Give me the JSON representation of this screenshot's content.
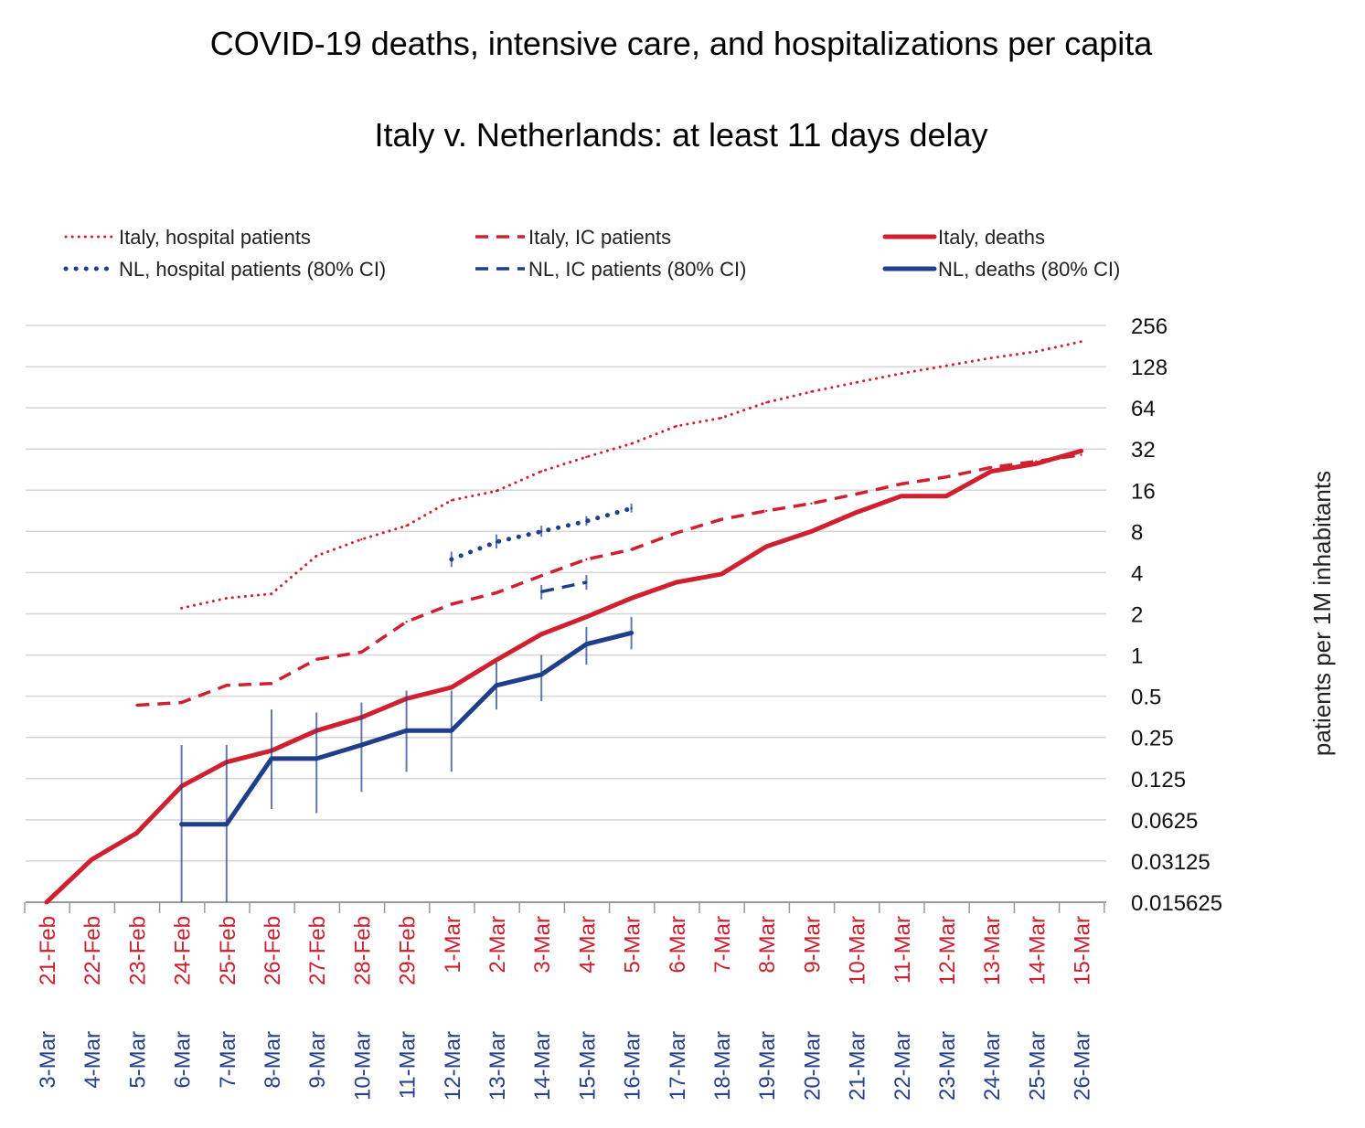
{
  "chart_data": {
    "type": "line",
    "title": "COVID-19 deaths, intensive care, and hospitalizations per capita",
    "subtitle": "Italy v. Netherlands: at least 11 days delay",
    "ylabel": "patients per 1M inhabitants",
    "y_scale": "log2",
    "ylim": [
      0.015625,
      256
    ],
    "y_ticks": [
      "256",
      "128",
      "64",
      "32",
      "16",
      "8",
      "4",
      "2",
      "1",
      "0.5",
      "0.25",
      "0.125",
      "0.0625",
      "0.03125",
      "0.015625"
    ],
    "categories_italy": [
      "21-Feb",
      "22-Feb",
      "23-Feb",
      "24-Feb",
      "25-Feb",
      "26-Feb",
      "27-Feb",
      "28-Feb",
      "29-Feb",
      "1-Mar",
      "2-Mar",
      "3-Mar",
      "4-Mar",
      "5-Mar",
      "6-Mar",
      "7-Mar",
      "8-Mar",
      "9-Mar",
      "10-Mar",
      "11-Mar",
      "12-Mar",
      "13-Mar",
      "14-Mar",
      "15-Mar"
    ],
    "categories_nl": [
      "3-Mar",
      "4-Mar",
      "5-Mar",
      "6-Mar",
      "7-Mar",
      "8-Mar",
      "9-Mar",
      "10-Mar",
      "11-Mar",
      "12-Mar",
      "13-Mar",
      "14-Mar",
      "15-Mar",
      "16-Mar",
      "17-Mar",
      "18-Mar",
      "19-Mar",
      "20-Mar",
      "21-Mar",
      "22-Mar",
      "23-Mar",
      "24-Mar",
      "25-Mar",
      "26-Mar"
    ],
    "grid": true,
    "legend_position": "top",
    "series": [
      {
        "name": "Italy, hospital patients",
        "color": "#d02030",
        "style": "dotted",
        "values": [
          null,
          null,
          null,
          2.2,
          2.6,
          2.8,
          5.3,
          7.0,
          8.8,
          13.5,
          15.8,
          22.0,
          28.0,
          35.0,
          47.0,
          54.0,
          70.0,
          84.0,
          98.0,
          114.0,
          130.0,
          148.0,
          165.0,
          195.0
        ]
      },
      {
        "name": "Italy, IC patients",
        "color": "#d02030",
        "style": "dashed",
        "values": [
          null,
          null,
          0.43,
          0.45,
          0.6,
          0.62,
          0.93,
          1.05,
          1.75,
          2.35,
          2.85,
          3.8,
          5.0,
          5.9,
          7.8,
          9.8,
          11.3,
          12.8,
          15.0,
          17.8,
          20.0,
          23.5,
          26.0,
          29.0
        ]
      },
      {
        "name": "Italy, deaths",
        "color": "#d02030",
        "style": "solid",
        "values": [
          0.015625,
          0.032,
          0.05,
          0.11,
          0.165,
          0.2,
          0.28,
          0.35,
          0.48,
          0.58,
          0.92,
          1.42,
          1.9,
          2.6,
          3.4,
          3.9,
          6.2,
          8.0,
          11.0,
          14.5,
          14.5,
          22.0,
          25.0,
          31.0
        ]
      },
      {
        "name": "NL, hospital patients (80% CI)",
        "color": "#1f3f8c",
        "style": "dotted",
        "values": [
          null,
          null,
          null,
          null,
          null,
          null,
          null,
          null,
          null,
          5.0,
          6.7,
          8.0,
          9.5,
          11.8,
          null,
          null,
          null,
          null,
          null,
          null,
          null,
          null,
          null,
          null
        ],
        "ci_low": [
          null,
          null,
          null,
          null,
          null,
          null,
          null,
          null,
          null,
          4.4,
          6.0,
          7.3,
          8.8,
          11.0,
          null,
          null,
          null,
          null,
          null,
          null,
          null,
          null,
          null,
          null
        ],
        "ci_high": [
          null,
          null,
          null,
          null,
          null,
          null,
          null,
          null,
          null,
          5.7,
          7.6,
          8.8,
          10.3,
          12.8,
          null,
          null,
          null,
          null,
          null,
          null,
          null,
          null,
          null,
          null
        ]
      },
      {
        "name": "NL, IC patients (80% CI)",
        "color": "#1f3f8c",
        "style": "dashed",
        "values": [
          null,
          null,
          null,
          null,
          null,
          null,
          null,
          null,
          null,
          null,
          null,
          2.9,
          3.4,
          null,
          null,
          null,
          null,
          null,
          null,
          null,
          null,
          null,
          null,
          null
        ],
        "ci_low": [
          null,
          null,
          null,
          null,
          null,
          null,
          null,
          null,
          null,
          null,
          null,
          2.55,
          3.0,
          null,
          null,
          null,
          null,
          null,
          null,
          null,
          null,
          null,
          null,
          null
        ],
        "ci_high": [
          null,
          null,
          null,
          null,
          null,
          null,
          null,
          null,
          null,
          null,
          null,
          3.25,
          3.85,
          null,
          null,
          null,
          null,
          null,
          null,
          null,
          null,
          null,
          null,
          null
        ]
      },
      {
        "name": "NL, deaths (80% CI)",
        "color": "#1f3f8c",
        "style": "solid",
        "values": [
          null,
          null,
          null,
          0.058,
          0.058,
          0.175,
          0.175,
          0.22,
          0.28,
          0.28,
          0.6,
          0.72,
          1.2,
          1.45,
          null,
          null,
          null,
          null,
          null,
          null,
          null,
          null,
          null,
          null
        ],
        "ci_low": [
          null,
          null,
          null,
          0.015625,
          0.015625,
          0.075,
          0.07,
          0.1,
          0.14,
          0.14,
          0.4,
          0.46,
          0.85,
          1.1,
          null,
          null,
          null,
          null,
          null,
          null,
          null,
          null,
          null,
          null
        ],
        "ci_high": [
          null,
          null,
          null,
          0.22,
          0.22,
          0.4,
          0.38,
          0.45,
          0.55,
          0.55,
          0.88,
          1.0,
          1.6,
          1.9,
          null,
          null,
          null,
          null,
          null,
          null,
          null,
          null,
          null,
          null
        ]
      }
    ],
    "category_colors": {
      "italy": "#c8202f",
      "nl": "#26408b"
    }
  }
}
